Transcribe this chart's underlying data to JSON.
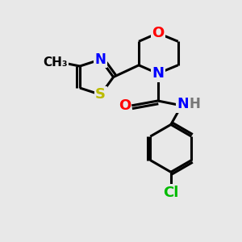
{
  "bg_color": "#e8e8e8",
  "bond_color": "#000000",
  "bond_width": 2.2,
  "atom_colors": {
    "O": "#ff0000",
    "N": "#0000ff",
    "S": "#bbbb00",
    "Cl": "#00bb00",
    "C": "#000000",
    "H": "#777777"
  },
  "font_size": 12,
  "fig_size": [
    3.0,
    3.0
  ],
  "dpi": 100,
  "xlim": [
    0,
    10
  ],
  "ylim": [
    0,
    10
  ]
}
